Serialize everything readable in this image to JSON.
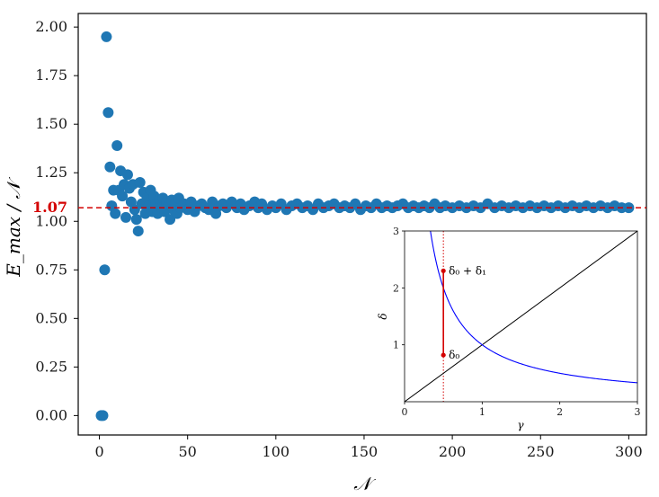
{
  "chart_data": [
    {
      "type": "scatter",
      "xlabel": "𝒩",
      "ylabel": "E_max / 𝒩",
      "xlim": [
        -12,
        310
      ],
      "ylim": [
        -0.1,
        2.07
      ],
      "xticks": [
        0,
        50,
        100,
        150,
        200,
        250,
        300
      ],
      "yticks": [
        0.0,
        0.25,
        0.5,
        0.75,
        1.0,
        1.25,
        1.5,
        1.75,
        2.0
      ],
      "xtick_labels": [
        "0",
        "50",
        "100",
        "150",
        "200",
        "250",
        "300"
      ],
      "ytick_labels": [
        "0.00",
        "0.25",
        "0.50",
        "0.75",
        "1.00",
        "1.25",
        "1.50",
        "1.75",
        "2.00"
      ],
      "marker_color": "#1f77b4",
      "reference_line": {
        "y": 1.07,
        "label": "1.07",
        "color": "#d40000",
        "style": "dashed"
      },
      "points": [
        [
          1,
          0.0
        ],
        [
          2,
          0.0
        ],
        [
          3,
          0.75
        ],
        [
          4,
          1.95
        ],
        [
          5,
          1.56
        ],
        [
          6,
          1.28
        ],
        [
          7,
          1.08
        ],
        [
          8,
          1.16
        ],
        [
          9,
          1.04
        ],
        [
          10,
          1.39
        ],
        [
          11,
          1.16
        ],
        [
          12,
          1.26
        ],
        [
          13,
          1.13
        ],
        [
          14,
          1.19
        ],
        [
          15,
          1.02
        ],
        [
          16,
          1.24
        ],
        [
          17,
          1.17
        ],
        [
          18,
          1.1
        ],
        [
          19,
          1.19
        ],
        [
          20,
          1.06
        ],
        [
          21,
          1.01
        ],
        [
          22,
          0.95
        ],
        [
          23,
          1.2
        ],
        [
          24,
          1.09
        ],
        [
          25,
          1.15
        ],
        [
          26,
          1.04
        ],
        [
          27,
          1.12
        ],
        [
          28,
          1.08
        ],
        [
          29,
          1.16
        ],
        [
          30,
          1.05
        ],
        [
          31,
          1.13
        ],
        [
          32,
          1.09
        ],
        [
          33,
          1.04
        ],
        [
          34,
          1.11
        ],
        [
          35,
          1.07
        ],
        [
          36,
          1.12
        ],
        [
          37,
          1.05
        ],
        [
          38,
          1.1
        ],
        [
          39,
          1.08
        ],
        [
          40,
          1.01
        ],
        [
          41,
          1.11
        ],
        [
          42,
          1.06
        ],
        [
          43,
          1.09
        ],
        [
          44,
          1.04
        ],
        [
          45,
          1.12
        ],
        [
          46,
          1.07
        ],
        [
          48,
          1.09
        ],
        [
          50,
          1.06
        ],
        [
          52,
          1.1
        ],
        [
          54,
          1.05
        ],
        [
          56,
          1.08
        ],
        [
          58,
          1.09
        ],
        [
          60,
          1.07
        ],
        [
          62,
          1.06
        ],
        [
          64,
          1.1
        ],
        [
          66,
          1.04
        ],
        [
          68,
          1.08
        ],
        [
          70,
          1.09
        ],
        [
          72,
          1.07
        ],
        [
          75,
          1.1
        ],
        [
          78,
          1.07
        ],
        [
          80,
          1.09
        ],
        [
          82,
          1.06
        ],
        [
          85,
          1.08
        ],
        [
          88,
          1.1
        ],
        [
          90,
          1.07
        ],
        [
          92,
          1.09
        ],
        [
          95,
          1.06
        ],
        [
          98,
          1.08
        ],
        [
          100,
          1.07
        ],
        [
          103,
          1.09
        ],
        [
          106,
          1.06
        ],
        [
          109,
          1.08
        ],
        [
          112,
          1.09
        ],
        [
          115,
          1.07
        ],
        [
          118,
          1.08
        ],
        [
          121,
          1.06
        ],
        [
          124,
          1.09
        ],
        [
          127,
          1.07
        ],
        [
          130,
          1.08
        ],
        [
          133,
          1.09
        ],
        [
          136,
          1.07
        ],
        [
          139,
          1.08
        ],
        [
          142,
          1.07
        ],
        [
          145,
          1.09
        ],
        [
          148,
          1.06
        ],
        [
          151,
          1.08
        ],
        [
          154,
          1.07
        ],
        [
          157,
          1.09
        ],
        [
          160,
          1.07
        ],
        [
          163,
          1.08
        ],
        [
          166,
          1.07
        ],
        [
          169,
          1.08
        ],
        [
          172,
          1.09
        ],
        [
          175,
          1.07
        ],
        [
          178,
          1.08
        ],
        [
          181,
          1.07
        ],
        [
          184,
          1.08
        ],
        [
          187,
          1.07
        ],
        [
          190,
          1.09
        ],
        [
          193,
          1.07
        ],
        [
          196,
          1.08
        ],
        [
          200,
          1.07
        ],
        [
          204,
          1.08
        ],
        [
          208,
          1.07
        ],
        [
          212,
          1.08
        ],
        [
          216,
          1.07
        ],
        [
          220,
          1.09
        ],
        [
          224,
          1.07
        ],
        [
          228,
          1.08
        ],
        [
          232,
          1.07
        ],
        [
          236,
          1.08
        ],
        [
          240,
          1.07
        ],
        [
          244,
          1.08
        ],
        [
          248,
          1.07
        ],
        [
          252,
          1.08
        ],
        [
          256,
          1.07
        ],
        [
          260,
          1.08
        ],
        [
          264,
          1.07
        ],
        [
          268,
          1.08
        ],
        [
          272,
          1.07
        ],
        [
          276,
          1.08
        ],
        [
          280,
          1.07
        ],
        [
          284,
          1.08
        ],
        [
          288,
          1.07
        ],
        [
          292,
          1.08
        ],
        [
          296,
          1.07
        ],
        [
          300,
          1.07
        ]
      ]
    },
    {
      "type": "line",
      "xlabel": "γ",
      "ylabel": "δ",
      "xlim": [
        0,
        3
      ],
      "ylim": [
        0,
        3
      ],
      "xticks": [
        0,
        1,
        2,
        3
      ],
      "yticks": [
        1,
        2,
        3
      ],
      "xtick_labels": [
        "0",
        "1",
        "2",
        "3"
      ],
      "ytick_labels": [
        "1",
        "2",
        "3"
      ],
      "series": [
        {
          "formula": "δ = γ",
          "color": "#000000"
        },
        {
          "formula": "δ = 1/γ",
          "color": "#0000ff"
        }
      ],
      "vline": {
        "x": 0.5,
        "color": "#d40000",
        "style": "dotted"
      },
      "segment": {
        "x": 0.5,
        "y_from": 0.82,
        "y_to": 2.3,
        "color": "#d40000"
      },
      "annotations": [
        {
          "x": 0.5,
          "y": 2.3,
          "text": "δ₀ + δ₁"
        },
        {
          "x": 0.5,
          "y": 0.82,
          "text": "δ₀"
        }
      ]
    }
  ]
}
